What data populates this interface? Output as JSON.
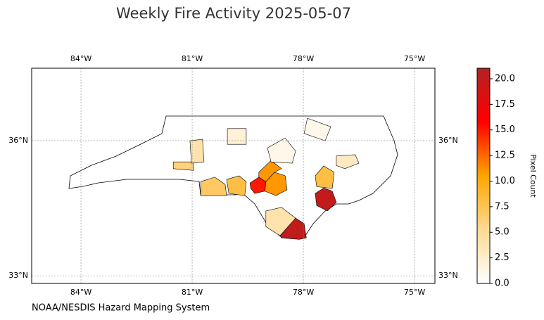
{
  "chart_data": {
    "type": "choropleth",
    "title": "Weekly Fire Activity 2025-05-07",
    "credit": "NOAA/NESDIS Hazard Mapping System",
    "colorbar_label": "Pixel Count",
    "xlim": [
      -85.33,
      -74.45
    ],
    "ylim": [
      32.83,
      37.61
    ],
    "xticks": [
      {
        "value": -84,
        "label": "84°W"
      },
      {
        "value": -81,
        "label": "81°W"
      },
      {
        "value": -78,
        "label": "78°W"
      },
      {
        "value": -75,
        "label": "75°W"
      }
    ],
    "yticks": [
      {
        "value": 36,
        "label": "36°N"
      },
      {
        "value": 33,
        "label": "33°N"
      }
    ],
    "grid": true,
    "clim": [
      0,
      21.03
    ],
    "cticks": [
      {
        "value": 0,
        "label": "0.0"
      },
      {
        "value": 2.5,
        "label": "2.5"
      },
      {
        "value": 5,
        "label": "5.0"
      },
      {
        "value": 7.5,
        "label": "7.5"
      },
      {
        "value": 10,
        "label": "10.0"
      },
      {
        "value": 12.5,
        "label": "12.5"
      },
      {
        "value": 15,
        "label": "15.0"
      },
      {
        "value": 17.5,
        "label": "17.5"
      },
      {
        "value": 20,
        "label": "20.0"
      }
    ],
    "colors": [
      "#ffffff",
      "#ffd992",
      "#ffa600",
      "#ff0000",
      "#b22222"
    ],
    "regions": [
      {
        "lon": [
          -78.63,
          -78.21,
          -77.98,
          -77.92,
          -78.11,
          -78.59
        ],
        "lat": [
          33.89,
          34.28,
          34.16,
          33.84,
          33.81,
          33.84
        ],
        "value": 20
      },
      {
        "lon": [
          -77.68,
          -77.45,
          -77.22,
          -77.11,
          -77.35,
          -77.64
        ],
        "lat": [
          34.83,
          34.95,
          34.88,
          34.63,
          34.44,
          34.56
        ],
        "value": 20
      },
      {
        "lon": [
          -79.44,
          -79.2,
          -79.01,
          -79.04,
          -79.31,
          -79.42
        ],
        "lat": [
          35.06,
          35.19,
          35.09,
          34.88,
          34.83,
          34.94
        ],
        "value": 15
      },
      {
        "lon": [
          -79.01,
          -78.78,
          -78.49,
          -78.44,
          -78.74,
          -79.04
        ],
        "lat": [
          35.09,
          35.3,
          35.22,
          34.91,
          34.78,
          34.88
        ],
        "value": 11
      },
      {
        "lon": [
          -79.2,
          -78.87,
          -78.59,
          -78.78,
          -79.01,
          -79.2
        ],
        "lat": [
          35.3,
          35.56,
          35.38,
          35.3,
          35.09,
          35.19
        ],
        "value": 11
      },
      {
        "lon": [
          -80.07,
          -79.73,
          -79.54,
          -79.58,
          -80.01
        ],
        "lat": [
          35.14,
          35.22,
          35.09,
          34.78,
          34.83
        ],
        "value": 8
      },
      {
        "lon": [
          -77.68,
          -77.45,
          -77.17,
          -77.22,
          -77.64
        ],
        "lat": [
          35.22,
          35.44,
          35.3,
          34.94,
          34.98
        ],
        "value": 8
      },
      {
        "lon": [
          -80.77,
          -80.39,
          -80.11,
          -80.07,
          -80.77
        ],
        "lat": [
          35.09,
          35.19,
          35.03,
          34.78,
          34.78
        ],
        "value": 7
      },
      {
        "lon": [
          -81.51,
          -80.96,
          -80.96,
          -81.51
        ],
        "lat": [
          35.53,
          35.53,
          35.34,
          35.38
        ],
        "value": 6
      },
      {
        "lon": [
          -81.06,
          -80.72,
          -80.68,
          -81.02
        ],
        "lat": [
          36.0,
          36.03,
          35.53,
          35.5
        ],
        "value": 4
      },
      {
        "lon": [
          -79.01,
          -78.59,
          -78.21,
          -78.63,
          -79.01
        ],
        "lat": [
          34.44,
          34.52,
          34.28,
          33.89,
          34.09
        ],
        "value": 4
      },
      {
        "lon": [
          -77.11,
          -76.6,
          -76.5,
          -76.88,
          -77.11
        ],
        "lat": [
          35.66,
          35.69,
          35.5,
          35.38,
          35.45
        ],
        "value": 3
      },
      {
        "lon": [
          -80.05,
          -79.54,
          -79.54,
          -80.05
        ],
        "lat": [
          36.27,
          36.27,
          35.92,
          35.92
        ],
        "value": 2
      },
      {
        "lon": [
          -78.97,
          -78.49,
          -78.21,
          -78.3,
          -78.87
        ],
        "lat": [
          35.84,
          36.06,
          35.77,
          35.5,
          35.53
        ],
        "value": 1
      },
      {
        "lon": [
          -77.89,
          -77.26,
          -77.41,
          -77.98
        ],
        "lat": [
          36.5,
          36.31,
          36.0,
          36.16
        ],
        "value": 1
      }
    ]
  }
}
